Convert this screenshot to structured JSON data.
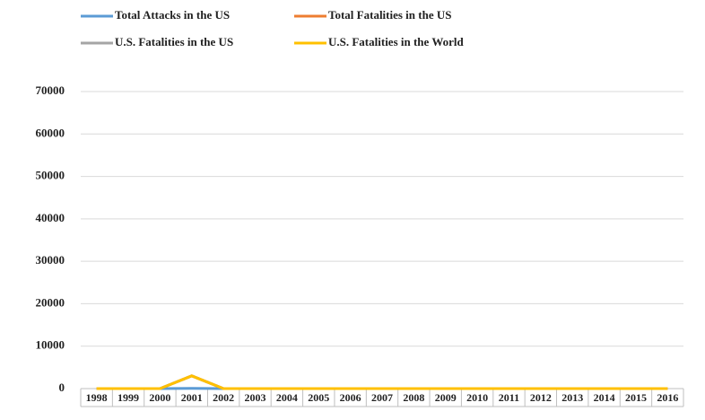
{
  "chart_data": {
    "type": "line",
    "categories": [
      "1998",
      "1999",
      "2000",
      "2001",
      "2002",
      "2003",
      "2004",
      "2005",
      "2006",
      "2007",
      "2008",
      "2009",
      "2010",
      "2011",
      "2012",
      "2013",
      "2014",
      "2015",
      "2016"
    ],
    "series": [
      {
        "name": "Total Attacks in the US",
        "color": "#5b9bd5",
        "values": [
          0,
          0,
          0,
          40,
          0,
          0,
          0,
          0,
          0,
          0,
          0,
          0,
          0,
          0,
          0,
          0,
          0,
          0,
          0
        ]
      },
      {
        "name": "Total Fatalities in the US",
        "color": "#ed7d31",
        "values": [
          0,
          0,
          0,
          3000,
          0,
          0,
          0,
          0,
          0,
          0,
          0,
          0,
          0,
          0,
          0,
          0,
          0,
          0,
          0
        ]
      },
      {
        "name": "U.S. Fatalities in the US",
        "color": "#a5a5a5",
        "values": [
          0,
          0,
          0,
          3000,
          0,
          0,
          0,
          0,
          0,
          0,
          0,
          0,
          0,
          0,
          0,
          0,
          0,
          0,
          0
        ]
      },
      {
        "name": "U.S. Fatalities in the World",
        "color": "#ffc000",
        "values": [
          0,
          0,
          0,
          3000,
          0,
          0,
          0,
          0,
          0,
          0,
          0,
          0,
          0,
          0,
          0,
          0,
          0,
          0,
          0
        ]
      }
    ],
    "ylim": [
      0,
      70000
    ],
    "yticks": [
      0,
      10000,
      20000,
      30000,
      40000,
      50000,
      60000,
      70000
    ],
    "grid": true
  }
}
